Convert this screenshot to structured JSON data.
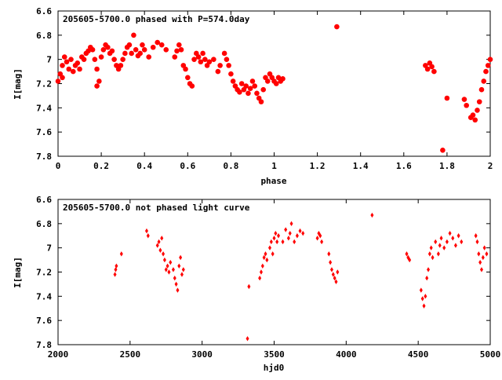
{
  "colors": {
    "points": "#ff0000",
    "axes": "#000000",
    "background": "#ffffff"
  },
  "chart_data": [
    {
      "type": "scatter",
      "title": "205605-5700.0 phased with P=574.0day",
      "xlabel": "phase",
      "ylabel": "I[mag]",
      "xlim": [
        0,
        2
      ],
      "ylim": [
        6.6,
        7.8
      ],
      "y_inverted": true,
      "grid": false,
      "x_ticks": [
        "0",
        "0.2",
        "0.4",
        "0.6",
        "0.8",
        "1",
        "1.2",
        "1.4",
        "1.6",
        "1.8",
        "2"
      ],
      "y_ticks": [
        "6.6",
        "6.8",
        "7",
        "7.2",
        "7.4",
        "7.6",
        "7.8"
      ],
      "marker": "filled-circle",
      "color": "#ff0000",
      "points": [
        [
          0.0,
          7.18
        ],
        [
          0.01,
          7.12
        ],
        [
          0.02,
          7.05
        ],
        [
          0.02,
          7.15
        ],
        [
          0.03,
          6.98
        ],
        [
          0.04,
          7.02
        ],
        [
          0.05,
          7.08
        ],
        [
          0.06,
          7.0
        ],
        [
          0.07,
          7.1
        ],
        [
          0.08,
          7.05
        ],
        [
          0.09,
          7.03
        ],
        [
          0.1,
          7.08
        ],
        [
          0.11,
          6.98
        ],
        [
          0.12,
          7.0
        ],
        [
          0.13,
          6.95
        ],
        [
          0.14,
          6.93
        ],
        [
          0.15,
          6.9
        ],
        [
          0.16,
          6.92
        ],
        [
          0.17,
          7.0
        ],
        [
          0.18,
          7.08
        ],
        [
          0.18,
          7.22
        ],
        [
          0.19,
          7.18
        ],
        [
          0.2,
          6.98
        ],
        [
          0.21,
          6.92
        ],
        [
          0.22,
          6.88
        ],
        [
          0.23,
          6.9
        ],
        [
          0.24,
          6.95
        ],
        [
          0.25,
          6.93
        ],
        [
          0.26,
          7.0
        ],
        [
          0.27,
          7.05
        ],
        [
          0.28,
          7.08
        ],
        [
          0.29,
          7.05
        ],
        [
          0.3,
          7.0
        ],
        [
          0.31,
          6.95
        ],
        [
          0.32,
          6.9
        ],
        [
          0.33,
          6.88
        ],
        [
          0.34,
          6.95
        ],
        [
          0.35,
          6.8
        ],
        [
          0.36,
          6.92
        ],
        [
          0.37,
          6.97
        ],
        [
          0.38,
          6.95
        ],
        [
          0.39,
          6.88
        ],
        [
          0.4,
          6.92
        ],
        [
          0.42,
          6.98
        ],
        [
          0.44,
          6.9
        ],
        [
          0.46,
          6.86
        ],
        [
          0.48,
          6.88
        ],
        [
          0.5,
          6.92
        ],
        [
          0.54,
          6.98
        ],
        [
          0.55,
          6.93
        ],
        [
          0.56,
          6.88
        ],
        [
          0.57,
          6.92
        ],
        [
          0.58,
          7.05
        ],
        [
          0.59,
          7.08
        ],
        [
          0.6,
          7.15
        ],
        [
          0.61,
          7.2
        ],
        [
          0.62,
          7.22
        ],
        [
          0.63,
          7.0
        ],
        [
          0.64,
          6.95
        ],
        [
          0.65,
          6.98
        ],
        [
          0.66,
          7.02
        ],
        [
          0.67,
          6.95
        ],
        [
          0.68,
          7.0
        ],
        [
          0.69,
          7.05
        ],
        [
          0.7,
          7.02
        ],
        [
          0.72,
          7.0
        ],
        [
          0.74,
          7.1
        ],
        [
          0.75,
          7.05
        ],
        [
          0.77,
          6.95
        ],
        [
          0.78,
          7.0
        ],
        [
          0.79,
          7.05
        ],
        [
          0.8,
          7.12
        ],
        [
          0.81,
          7.18
        ],
        [
          0.82,
          7.22
        ],
        [
          0.83,
          7.25
        ],
        [
          0.84,
          7.27
        ],
        [
          0.85,
          7.2
        ],
        [
          0.86,
          7.25
        ],
        [
          0.87,
          7.22
        ],
        [
          0.88,
          7.28
        ],
        [
          0.89,
          7.24
        ],
        [
          0.9,
          7.18
        ],
        [
          0.91,
          7.22
        ],
        [
          0.92,
          7.28
        ],
        [
          0.93,
          7.32
        ],
        [
          0.94,
          7.35
        ],
        [
          0.95,
          7.25
        ],
        [
          0.96,
          7.15
        ],
        [
          0.97,
          7.18
        ],
        [
          0.98,
          7.12
        ],
        [
          0.99,
          7.15
        ],
        [
          1.0,
          7.18
        ],
        [
          1.01,
          7.2
        ],
        [
          1.02,
          7.15
        ],
        [
          1.03,
          7.18
        ],
        [
          1.04,
          7.16
        ],
        [
          1.29,
          6.73
        ],
        [
          1.7,
          7.05
        ],
        [
          1.71,
          7.08
        ],
        [
          1.72,
          7.03
        ],
        [
          1.73,
          7.06
        ],
        [
          1.74,
          7.1
        ],
        [
          1.78,
          7.75
        ],
        [
          1.8,
          7.32
        ],
        [
          1.88,
          7.33
        ],
        [
          1.89,
          7.38
        ],
        [
          1.91,
          7.48
        ],
        [
          1.92,
          7.46
        ],
        [
          1.93,
          7.5
        ],
        [
          1.94,
          7.42
        ],
        [
          1.95,
          7.35
        ],
        [
          1.96,
          7.25
        ],
        [
          1.97,
          7.18
        ],
        [
          1.98,
          7.1
        ],
        [
          1.99,
          7.05
        ],
        [
          2.0,
          7.0
        ]
      ]
    },
    {
      "type": "scatter",
      "title": "205605-5700.0 not phased light curve",
      "xlabel": "hjd0",
      "ylabel": "I[mag]",
      "xlim": [
        2000,
        5000
      ],
      "ylim": [
        6.6,
        7.8
      ],
      "y_inverted": true,
      "grid": false,
      "x_ticks": [
        "2000",
        "2500",
        "3000",
        "3500",
        "4000",
        "4500",
        "5000"
      ],
      "y_ticks": [
        "6.6",
        "6.8",
        "7",
        "7.2",
        "7.4",
        "7.6",
        "7.8"
      ],
      "marker": "filled-diamond",
      "color": "#ff0000",
      "points": [
        [
          2395,
          7.22
        ],
        [
          2400,
          7.18
        ],
        [
          2405,
          7.15
        ],
        [
          2440,
          7.05
        ],
        [
          2615,
          6.86
        ],
        [
          2625,
          6.9
        ],
        [
          2690,
          6.98
        ],
        [
          2700,
          6.95
        ],
        [
          2710,
          7.02
        ],
        [
          2720,
          6.92
        ],
        [
          2730,
          7.05
        ],
        [
          2740,
          7.1
        ],
        [
          2750,
          7.18
        ],
        [
          2760,
          7.15
        ],
        [
          2770,
          7.2
        ],
        [
          2780,
          7.12
        ],
        [
          2800,
          7.18
        ],
        [
          2810,
          7.25
        ],
        [
          2820,
          7.3
        ],
        [
          2830,
          7.35
        ],
        [
          2840,
          7.15
        ],
        [
          2850,
          7.08
        ],
        [
          2860,
          7.22
        ],
        [
          2870,
          7.18
        ],
        [
          3315,
          7.75
        ],
        [
          3325,
          7.32
        ],
        [
          3400,
          7.25
        ],
        [
          3410,
          7.2
        ],
        [
          3420,
          7.15
        ],
        [
          3430,
          7.08
        ],
        [
          3440,
          7.05
        ],
        [
          3450,
          7.1
        ],
        [
          3470,
          7.0
        ],
        [
          3480,
          6.95
        ],
        [
          3490,
          7.05
        ],
        [
          3500,
          6.92
        ],
        [
          3510,
          6.88
        ],
        [
          3520,
          6.95
        ],
        [
          3530,
          6.9
        ],
        [
          3560,
          6.95
        ],
        [
          3580,
          6.85
        ],
        [
          3600,
          6.92
        ],
        [
          3610,
          6.88
        ],
        [
          3620,
          6.8
        ],
        [
          3640,
          6.95
        ],
        [
          3660,
          6.9
        ],
        [
          3680,
          6.86
        ],
        [
          3700,
          6.88
        ],
        [
          3800,
          6.92
        ],
        [
          3810,
          6.88
        ],
        [
          3820,
          6.9
        ],
        [
          3830,
          6.95
        ],
        [
          3880,
          7.05
        ],
        [
          3890,
          7.12
        ],
        [
          3900,
          7.18
        ],
        [
          3910,
          7.22
        ],
        [
          3920,
          7.25
        ],
        [
          3930,
          7.28
        ],
        [
          3940,
          7.2
        ],
        [
          4180,
          6.73
        ],
        [
          4420,
          7.05
        ],
        [
          4430,
          7.08
        ],
        [
          4440,
          7.1
        ],
        [
          4520,
          7.35
        ],
        [
          4530,
          7.42
        ],
        [
          4540,
          7.48
        ],
        [
          4550,
          7.4
        ],
        [
          4560,
          7.25
        ],
        [
          4570,
          7.18
        ],
        [
          4580,
          7.05
        ],
        [
          4590,
          7.0
        ],
        [
          4600,
          7.08
        ],
        [
          4620,
          6.95
        ],
        [
          4640,
          7.05
        ],
        [
          4650,
          6.98
        ],
        [
          4660,
          6.92
        ],
        [
          4680,
          7.0
        ],
        [
          4700,
          6.95
        ],
        [
          4720,
          6.88
        ],
        [
          4740,
          6.92
        ],
        [
          4760,
          6.98
        ],
        [
          4780,
          6.9
        ],
        [
          4800,
          6.95
        ],
        [
          4900,
          6.9
        ],
        [
          4910,
          6.95
        ],
        [
          4920,
          7.05
        ],
        [
          4930,
          7.12
        ],
        [
          4940,
          7.18
        ],
        [
          4950,
          7.08
        ],
        [
          4960,
          7.0
        ],
        [
          4975,
          7.05
        ]
      ]
    }
  ]
}
